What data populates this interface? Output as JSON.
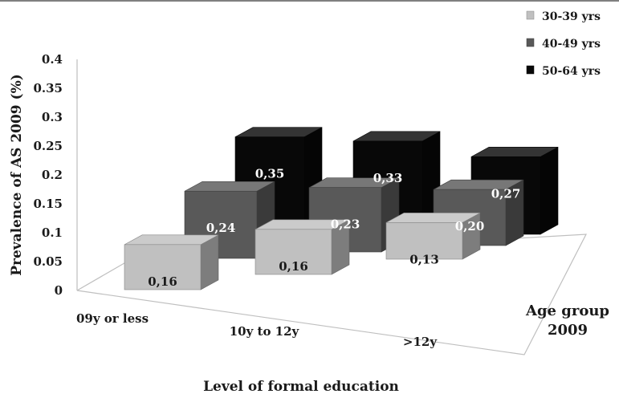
{
  "chart_data": {
    "type": "bar",
    "variant": "3d-column",
    "categories": [
      "09y or less",
      "10y to 12y",
      ">12y"
    ],
    "series": [
      {
        "name": "30-39 yrs",
        "values": [
          0.16,
          0.16,
          0.13
        ],
        "labels": [
          "0,16",
          "0,16",
          "0,13"
        ],
        "color": "#c0c0c0"
      },
      {
        "name": "40-49 yrs",
        "values": [
          0.24,
          0.23,
          0.2
        ],
        "labels": [
          "0,24",
          "0,23",
          "0,20"
        ],
        "color": "#595959"
      },
      {
        "name": "50-64 yrs",
        "values": [
          0.35,
          0.33,
          0.27
        ],
        "labels": [
          "0,35",
          "0,33",
          "0,27"
        ],
        "color": "#080808"
      }
    ],
    "y_ticks": [
      "0",
      "0.05",
      "0.1",
      "0.15",
      "0.2",
      "0.25",
      "0.3",
      "0.35",
      "0.4"
    ],
    "ylim": [
      0,
      0.4
    ],
    "ylabel": "Prevalence of AS 2009 (%)",
    "xlabel": "Level of formal education",
    "depth_label_line1": "Age group",
    "depth_label_line2": "2009",
    "legend_position": "top-right",
    "grid": false
  }
}
